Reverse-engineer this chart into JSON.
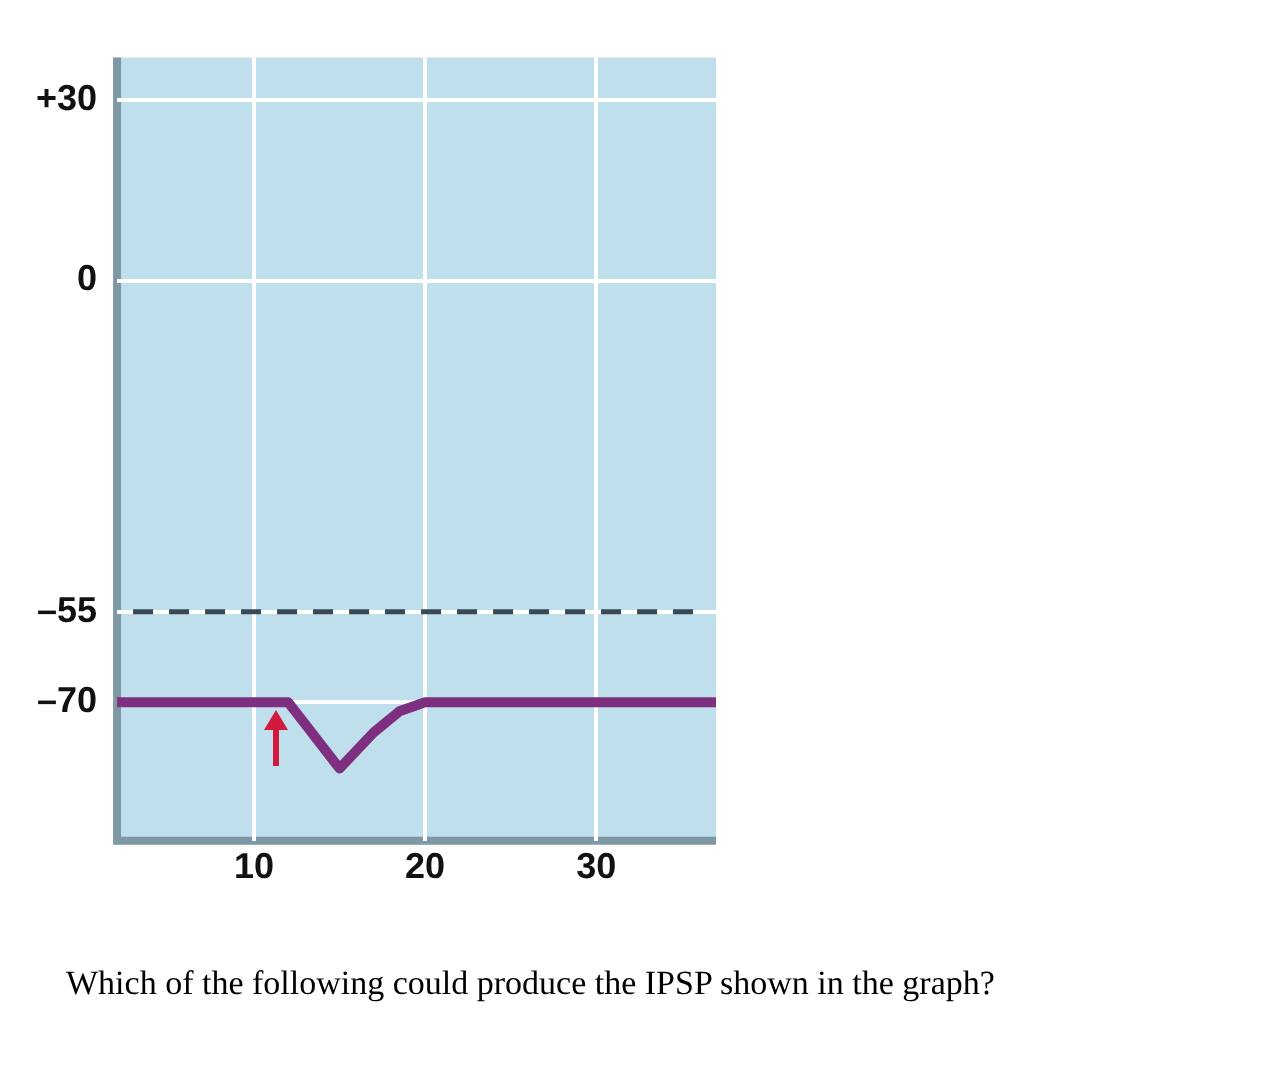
{
  "chart_data": {
    "type": "line",
    "x": [
      2,
      12,
      15,
      17,
      18.5,
      20,
      37
    ],
    "series": [
      {
        "color": "#7e2f7f",
        "values": [
          -70,
          -70,
          -81,
          -75,
          -71.5,
          -70,
          -70
        ]
      }
    ],
    "xlim": [
      2,
      37
    ],
    "xticks": [
      10,
      20,
      30
    ],
    "ylim": [
      -93,
      37
    ],
    "yticks": [
      {
        "value": 30,
        "label": "+30"
      },
      0,
      {
        "value": -55,
        "label": "–55"
      },
      {
        "value": -70,
        "label": "–70"
      }
    ],
    "grid": true,
    "marker": "none",
    "line_style": "solid",
    "ref_lines": [
      {
        "axis": "y",
        "value": -55,
        "color": "#3a4a55",
        "line_style": "dashed"
      }
    ],
    "annotations": [
      "Which of the following could produce the IPSP shown in the graph?"
    ]
  }
}
